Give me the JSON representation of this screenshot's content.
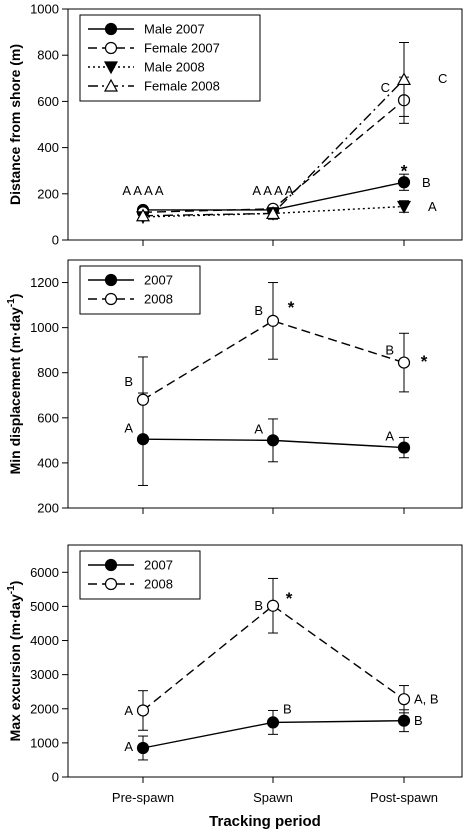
{
  "chart_data": [
    {
      "type": "line",
      "ylabel": "Distance from shore (m)",
      "xlabel": "",
      "categories": [
        "Pre-spawn",
        "Spawn",
        "Post-spawn"
      ],
      "ylim": [
        0,
        1000
      ],
      "yticks": [
        "0",
        "200",
        "400",
        "600",
        "800",
        "1000"
      ],
      "legend_position": "top-left",
      "series": [
        {
          "name": "Male 2007",
          "style": "solid",
          "marker": "filled-circle",
          "values": [
            130,
            130,
            250
          ],
          "errors": [
            10,
            10,
            35
          ]
        },
        {
          "name": "Female 2007",
          "style": "dashed",
          "marker": "open-circle",
          "values": [
            120,
            135,
            605
          ],
          "errors": [
            10,
            12,
            100
          ]
        },
        {
          "name": "Male 2008",
          "style": "dotted",
          "marker": "filled-triangle-down",
          "values": [
            100,
            115,
            145
          ],
          "errors": [
            10,
            25,
            25
          ]
        },
        {
          "name": "Female 2008",
          "style": "dashdot",
          "marker": "open-triangle-up",
          "values": [
            105,
            115,
            695
          ],
          "errors": [
            8,
            15,
            160
          ]
        }
      ],
      "annotations": [
        {
          "text": "A A A A",
          "category": 0,
          "y": 215,
          "anchor": "middle"
        },
        {
          "text": "A A A A",
          "category": 1,
          "y": 215,
          "anchor": "middle"
        },
        {
          "text": "C",
          "category": 2,
          "y": 660,
          "anchor": "end",
          "dx": -14
        },
        {
          "text": "C",
          "category": 2,
          "y": 700,
          "anchor": "start",
          "dx": 34
        },
        {
          "text": "B",
          "category": 2,
          "y": 250,
          "anchor": "start",
          "dx": 18
        },
        {
          "text": "A",
          "category": 2,
          "y": 145,
          "anchor": "start",
          "dx": 24
        }
      ],
      "stars": [
        {
          "category": 2,
          "y": 310
        }
      ]
    },
    {
      "type": "line",
      "ylabel": "Min displacement (m·day",
      "ylabel_sup": "-1",
      "ylabel_close": ")",
      "xlabel": "",
      "categories": [
        "Pre-spawn",
        "Spawn",
        "Post-spawn"
      ],
      "ylim": [
        200,
        1300
      ],
      "yticks": [
        "200",
        "400",
        "600",
        "800",
        "1000",
        "1200"
      ],
      "legend_position": "top-left",
      "series": [
        {
          "name": "2007",
          "style": "solid",
          "marker": "filled-circle",
          "values": [
            505,
            500,
            468
          ],
          "errors": [
            205,
            95,
            45
          ]
        },
        {
          "name": "2008",
          "style": "dashed",
          "marker": "open-circle",
          "values": [
            680,
            1030,
            845
          ],
          "errors": [
            190,
            170,
            130
          ]
        }
      ],
      "annotations": [
        {
          "text": "A",
          "category": 0,
          "y": 555,
          "anchor": "end",
          "dx": -10
        },
        {
          "text": "B",
          "category": 0,
          "y": 760,
          "anchor": "end",
          "dx": -10
        },
        {
          "text": "A",
          "category": 1,
          "y": 550,
          "anchor": "end",
          "dx": -10
        },
        {
          "text": "B",
          "category": 1,
          "y": 1075,
          "anchor": "end",
          "dx": -10
        },
        {
          "text": "A",
          "category": 2,
          "y": 520,
          "anchor": "end",
          "dx": -10
        },
        {
          "text": "B",
          "category": 2,
          "y": 900,
          "anchor": "end",
          "dx": -10
        }
      ],
      "stars": [
        {
          "category": 1,
          "y": 1100,
          "dx": 18
        },
        {
          "category": 2,
          "y": 860,
          "dx": 20
        }
      ]
    },
    {
      "type": "line",
      "ylabel": "Max excursion (m·day",
      "ylabel_sup": "-1",
      "ylabel_close": ")",
      "xlabel": "Tracking period",
      "categories": [
        "Pre-spawn",
        "Spawn",
        "Post-spawn"
      ],
      "ylim": [
        0,
        6800
      ],
      "yticks": [
        "0",
        "1000",
        "2000",
        "3000",
        "4000",
        "5000",
        "6000"
      ],
      "legend_position": "top-left",
      "series": [
        {
          "name": "2007",
          "style": "solid",
          "marker": "filled-circle",
          "values": [
            850,
            1600,
            1650
          ],
          "errors": [
            350,
            350,
            320
          ]
        },
        {
          "name": "2008",
          "style": "dashed",
          "marker": "open-circle",
          "values": [
            1950,
            5020,
            2280
          ],
          "errors": [
            580,
            800,
            400
          ]
        }
      ],
      "annotations": [
        {
          "text": "A",
          "category": 0,
          "y": 900,
          "anchor": "end",
          "dx": -10
        },
        {
          "text": "A",
          "category": 0,
          "y": 1950,
          "anchor": "end",
          "dx": -10
        },
        {
          "text": "B",
          "category": 1,
          "y": 2000,
          "anchor": "start",
          "dx": 10
        },
        {
          "text": "B",
          "category": 1,
          "y": 5020,
          "anchor": "end",
          "dx": -10
        },
        {
          "text": "B",
          "category": 2,
          "y": 1650,
          "anchor": "start",
          "dx": 10
        },
        {
          "text": "A, B",
          "category": 2,
          "y": 2280,
          "anchor": "start",
          "dx": 10
        }
      ],
      "stars": [
        {
          "category": 1,
          "y": 5300,
          "dx": 16
        }
      ]
    }
  ]
}
